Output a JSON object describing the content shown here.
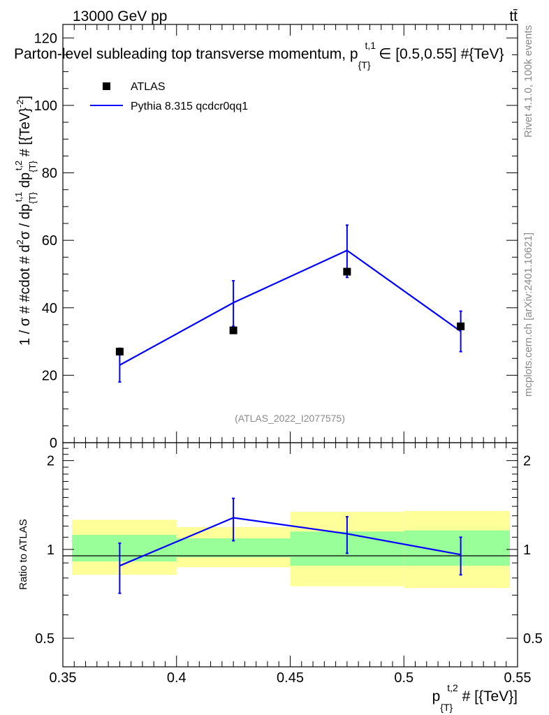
{
  "header": {
    "left_label": "13000 GeV pp",
    "right_label": "tt̄"
  },
  "side_labels": {
    "rivet": "Rivet 4.1.0,  100k events",
    "mcplots": "mcplots.cern.ch [arXiv:2401.10621]"
  },
  "chart_data": [
    {
      "type": "scatter",
      "panel": "main",
      "title": "Parton-level subleading top transverse momentum, p_{T}^{t,1} ∈ [0.5,0.55] #{TeV}",
      "title_parts": {
        "lead": "Parton-level subleading top transverse momentum, p",
        "sub": "{T}",
        "sup": "t,1",
        "tail": "∈ [0.5,0.55] #{TeV}"
      },
      "ylabel": "1 / σ # #cdot # d²σ / dp_{T}^{t,1} dp_{T}^{t,2} # [{TeV}^{-2}]",
      "ylabel_parts": {
        "a": "1 / σ # #cdot # d",
        "b_sup": "2",
        "c": "σ / dp",
        "d_sub": "{T}",
        "d_sup": "t,1",
        "e": " dp",
        "f_sub": "{T}",
        "f_sup": "t,2",
        "g": " # [{TeV}",
        "g_sup": "-2",
        "h": "]"
      },
      "watermark": "(ATLAS_2022_I2077575)",
      "xlim": [
        0.35,
        0.55
      ],
      "ylim": [
        0,
        124
      ],
      "yticks": [
        0,
        20,
        40,
        60,
        80,
        100,
        120
      ],
      "ytick_labels": [
        "0",
        "20",
        "40",
        "60",
        "80",
        "100",
        "120"
      ],
      "legend_position": "top-left",
      "series": [
        {
          "name": "ATLAS",
          "kind": "markers",
          "color": "#000000",
          "x": [
            0.375,
            0.425,
            0.475,
            0.525
          ],
          "y": [
            27.0,
            33.3,
            50.7,
            34.5
          ]
        },
        {
          "name": "Pythia 8.315 qcdcr0qq1",
          "kind": "line",
          "color": "#0000ff",
          "x": [
            0.375,
            0.425,
            0.475,
            0.525
          ],
          "y": [
            23.0,
            41.5,
            57.0,
            33.0
          ],
          "err_low": [
            5.0,
            7.0,
            8.0,
            6.0
          ],
          "err_high": [
            5.0,
            6.5,
            7.5,
            6.0
          ]
        }
      ]
    },
    {
      "type": "line",
      "panel": "ratio",
      "ylabel": "Ratio to ATLAS",
      "xlabel": "p_{T}^{t,2} # [{TeV}]",
      "xlabel_parts": {
        "a": "p",
        "sub": "{T}",
        "sup": "t,2",
        "b": " # [{TeV}]"
      },
      "scale": "log",
      "ylim": [
        0.4,
        2.3
      ],
      "yticks": [
        0.5,
        1,
        2
      ],
      "ytick_labels": [
        "0.5",
        "1",
        "2"
      ],
      "xticks": [
        0.35,
        0.4,
        0.45,
        0.5,
        0.55
      ],
      "xtick_labels": [
        "0.35",
        "0.4",
        "0.45",
        "0.5",
        "0.55"
      ],
      "bands": [
        {
          "x0": 0.35,
          "x1": 0.4,
          "inner": [
            0.91,
            1.12
          ],
          "outer": [
            0.82,
            1.26
          ]
        },
        {
          "x0": 0.4,
          "x1": 0.45,
          "inner": [
            0.94,
            1.09
          ],
          "outer": [
            0.87,
            1.19
          ]
        },
        {
          "x0": 0.45,
          "x1": 0.5,
          "inner": [
            0.88,
            1.15
          ],
          "outer": [
            0.75,
            1.34
          ]
        },
        {
          "x0": 0.5,
          "x1": 0.55,
          "inner": [
            0.88,
            1.16
          ],
          "outer": [
            0.74,
            1.35
          ]
        }
      ],
      "band_colors": {
        "inner": "#99ff99",
        "outer": "#ffff99"
      },
      "series": [
        {
          "name": "Pythia 8.315 qcdcr0qq1 / ATLAS",
          "color": "#0000ff",
          "x": [
            0.375,
            0.425,
            0.475,
            0.525
          ],
          "y": [
            0.88,
            1.28,
            1.13,
            0.96
          ],
          "err_low": [
            0.17,
            0.21,
            0.16,
            0.14
          ],
          "err_high": [
            0.17,
            0.21,
            0.16,
            0.14
          ]
        }
      ]
    }
  ]
}
